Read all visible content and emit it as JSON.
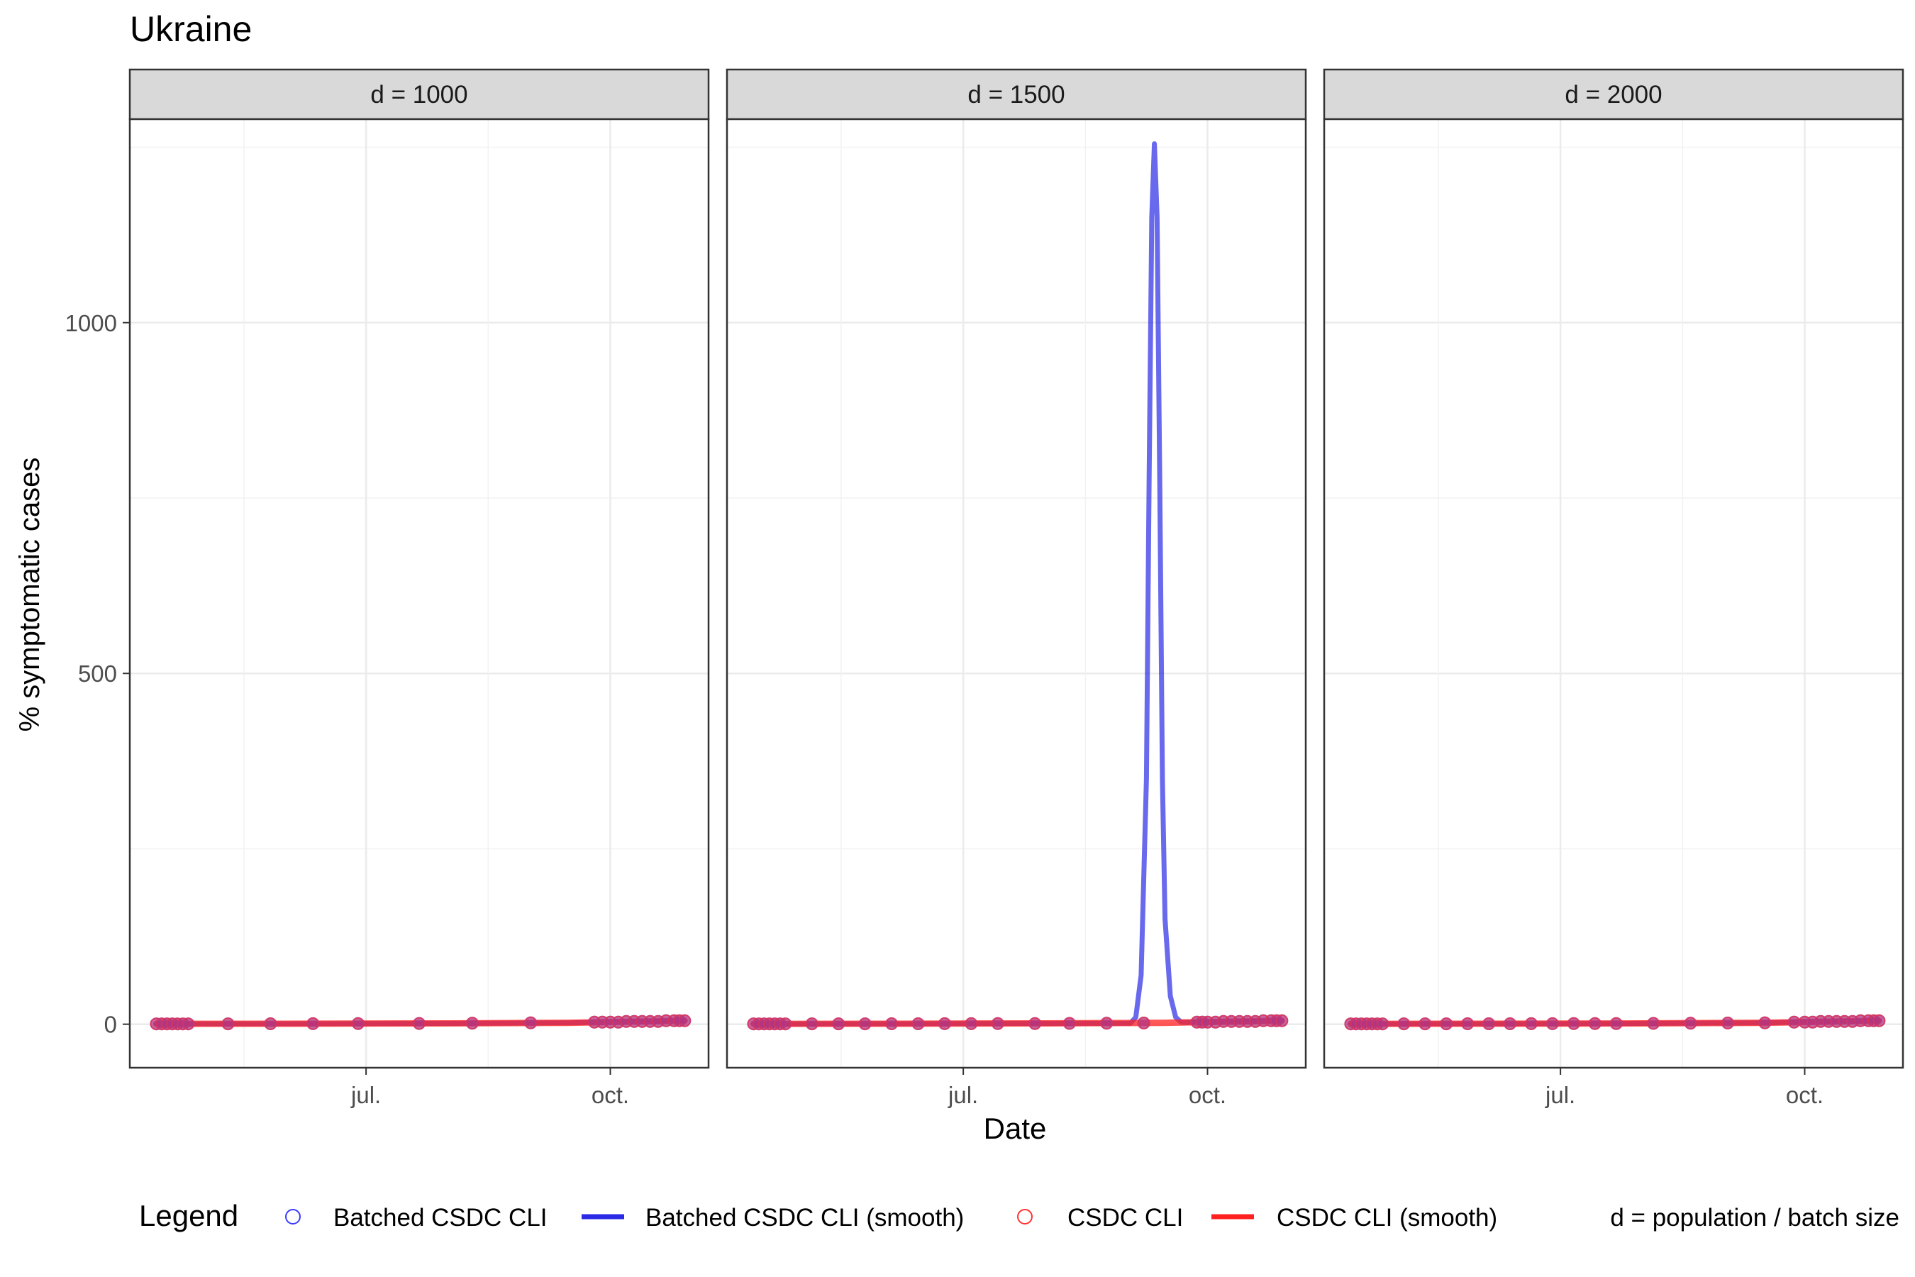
{
  "chart_data": {
    "type": "line",
    "title": "Ukraine",
    "xlabel": "Date",
    "ylabel": "% symptomatic cases",
    "x_ticks": [
      "jul.",
      "oct."
    ],
    "x_tick_dates": [
      "2020-07-01",
      "2020-10-01"
    ],
    "x_range": [
      "2020-04-03",
      "2020-11-07"
    ],
    "y_ticks": [
      0,
      500,
      1000
    ],
    "ylim": [
      -62,
      1290
    ],
    "grid": true,
    "legend": {
      "title": "Legend",
      "position": "bottom",
      "entries": [
        {
          "label": "Batched CSDC CLI",
          "kind": "point",
          "color": "#3b3bff"
        },
        {
          "label": "Batched CSDC CLI (smooth)",
          "kind": "line",
          "color": "#2a2ae6"
        },
        {
          "label": "CSDC CLI",
          "kind": "point",
          "color": "#ff3333"
        },
        {
          "label": "CSDC CLI (smooth)",
          "kind": "line",
          "color": "#ff2020"
        }
      ],
      "note": "d = population / batch size"
    },
    "facets": [
      {
        "label": "d = 1000",
        "point_dates": [
          "2020-04-13",
          "2020-04-15",
          "2020-04-17",
          "2020-04-19",
          "2020-04-21",
          "2020-04-23",
          "2020-04-25",
          "2020-05-10",
          "2020-05-26",
          "2020-06-11",
          "2020-06-28",
          "2020-07-21",
          "2020-08-10",
          "2020-09-01",
          "2020-09-25",
          "2020-09-28",
          "2020-10-01",
          "2020-10-04",
          "2020-10-07",
          "2020-10-10",
          "2020-10-13",
          "2020-10-16",
          "2020-10-19",
          "2020-10-22",
          "2020-10-25",
          "2020-10-27",
          "2020-10-29"
        ],
        "point_values": [
          0.5,
          0.5,
          0.5,
          0.5,
          0.5,
          0.5,
          0.5,
          0.6,
          0.7,
          0.8,
          0.9,
          1.1,
          1.5,
          2.0,
          3,
          3,
          3,
          3,
          4,
          4,
          4,
          4,
          4,
          5,
          5,
          5,
          5
        ],
        "smooth_batched": {
          "dates": [
            "2020-04-13",
            "2020-06-01",
            "2020-08-01",
            "2020-09-15",
            "2020-10-15",
            "2020-10-29"
          ],
          "values": [
            0.5,
            0.7,
            1.2,
            2.0,
            4.0,
            5.0
          ]
        },
        "smooth_csdc": {
          "dates": [
            "2020-04-13",
            "2020-06-01",
            "2020-08-01",
            "2020-09-15",
            "2020-10-15",
            "2020-10-29"
          ],
          "values": [
            0.5,
            0.7,
            1.2,
            2.0,
            4.0,
            5.0
          ]
        }
      },
      {
        "label": "d = 1500",
        "point_dates": [
          "2020-04-13",
          "2020-04-15",
          "2020-04-17",
          "2020-04-19",
          "2020-04-21",
          "2020-04-23",
          "2020-04-25",
          "2020-05-05",
          "2020-05-15",
          "2020-05-25",
          "2020-06-04",
          "2020-06-14",
          "2020-06-24",
          "2020-07-04",
          "2020-07-14",
          "2020-07-28",
          "2020-08-10",
          "2020-08-24",
          "2020-09-07",
          "2020-09-27",
          "2020-09-29",
          "2020-10-01",
          "2020-10-04",
          "2020-10-07",
          "2020-10-10",
          "2020-10-13",
          "2020-10-16",
          "2020-10-19",
          "2020-10-22",
          "2020-10-25",
          "2020-10-27",
          "2020-10-29"
        ],
        "point_values": [
          0.5,
          0.5,
          0.5,
          0.5,
          0.5,
          0.5,
          0.5,
          0.6,
          0.6,
          0.6,
          0.7,
          0.7,
          0.8,
          0.8,
          0.9,
          1.0,
          1.2,
          1.4,
          1.7,
          3,
          3,
          3,
          3,
          4,
          4,
          4,
          4,
          4,
          5,
          5,
          5,
          5
        ],
        "smooth_batched": {
          "dates": [
            "2020-04-13",
            "2020-06-01",
            "2020-08-01",
            "2020-09-02",
            "2020-09-04",
            "2020-09-06",
            "2020-09-08",
            "2020-09-09",
            "2020-09-10",
            "2020-09-11",
            "2020-09-12",
            "2020-09-13",
            "2020-09-14",
            "2020-09-15",
            "2020-09-17",
            "2020-09-19",
            "2020-09-21",
            "2020-09-23",
            "2020-10-15",
            "2020-10-29"
          ],
          "values": [
            0.5,
            0.7,
            1.2,
            1.5,
            10,
            70,
            350,
            780,
            1150,
            1255,
            1150,
            780,
            350,
            150,
            40,
            10,
            3,
            2.5,
            4,
            5
          ]
        },
        "smooth_csdc": {
          "dates": [
            "2020-04-13",
            "2020-06-01",
            "2020-08-01",
            "2020-09-15",
            "2020-10-15",
            "2020-10-29"
          ],
          "values": [
            0.5,
            0.7,
            1.2,
            2.0,
            4.0,
            5.0
          ]
        }
      },
      {
        "label": "d = 2000",
        "point_dates": [
          "2020-04-13",
          "2020-04-15",
          "2020-04-17",
          "2020-04-19",
          "2020-04-21",
          "2020-04-23",
          "2020-04-25",
          "2020-05-03",
          "2020-05-11",
          "2020-05-19",
          "2020-05-27",
          "2020-06-04",
          "2020-06-12",
          "2020-06-20",
          "2020-06-28",
          "2020-07-06",
          "2020-07-14",
          "2020-07-22",
          "2020-08-05",
          "2020-08-19",
          "2020-09-02",
          "2020-09-16",
          "2020-09-27",
          "2020-10-01",
          "2020-10-04",
          "2020-10-07",
          "2020-10-10",
          "2020-10-13",
          "2020-10-16",
          "2020-10-19",
          "2020-10-22",
          "2020-10-25",
          "2020-10-27",
          "2020-10-29"
        ],
        "point_values": [
          0.5,
          0.5,
          0.5,
          0.5,
          0.5,
          0.5,
          0.5,
          0.6,
          0.6,
          0.6,
          0.7,
          0.7,
          0.7,
          0.8,
          0.8,
          0.9,
          0.9,
          1.0,
          1.2,
          1.4,
          1.7,
          2.0,
          3,
          3,
          3,
          4,
          4,
          4,
          4,
          4,
          5,
          5,
          5,
          5
        ],
        "smooth_batched": {
          "dates": [
            "2020-04-13",
            "2020-06-01",
            "2020-08-01",
            "2020-09-15",
            "2020-10-15",
            "2020-10-29"
          ],
          "values": [
            0.5,
            0.7,
            1.2,
            2.0,
            4.0,
            5.0
          ]
        },
        "smooth_csdc": {
          "dates": [
            "2020-04-13",
            "2020-06-01",
            "2020-08-01",
            "2020-09-15",
            "2020-10-15",
            "2020-10-29"
          ],
          "values": [
            0.5,
            0.7,
            1.2,
            2.0,
            4.0,
            5.0
          ]
        }
      }
    ]
  }
}
